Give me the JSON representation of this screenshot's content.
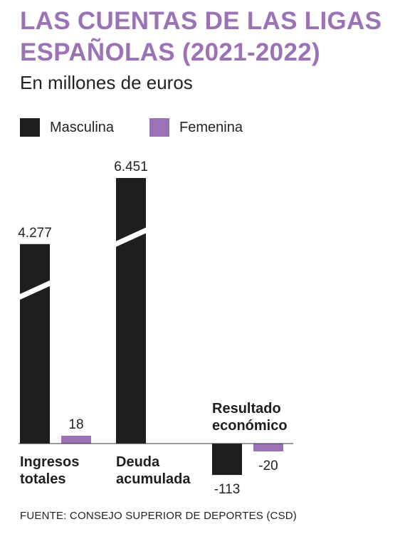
{
  "header": {
    "title": "LAS CUENTAS DE LAS LIGAS ESPAÑOLAS (2021-2022)",
    "subtitle": "En millones de euros"
  },
  "legend": {
    "items": [
      {
        "label": "Masculina",
        "color": "#1e1e1e"
      },
      {
        "label": "Femenina",
        "color": "#9b72b5"
      }
    ]
  },
  "chart_data": {
    "type": "bar",
    "title": "LAS CUENTAS DE LAS LIGAS ESPAÑOLAS (2021-2022)",
    "subtitle": "En millones de euros",
    "xlabel": "",
    "ylabel": "",
    "legend_position": "top-left",
    "axis_broken": true,
    "grid": false,
    "categories": [
      "Ingresos totales",
      "Deuda acumulada",
      "Resultado económico"
    ],
    "category_labels": [
      [
        "Ingresos",
        "totales"
      ],
      [
        "Deuda",
        "acumulada"
      ],
      [
        "Resultado",
        "económico"
      ]
    ],
    "series": [
      {
        "name": "Masculina",
        "color": "#1e1e1e",
        "values": [
          4277,
          6451,
          -113
        ],
        "labels": [
          "4.277",
          "6.451",
          "-113"
        ]
      },
      {
        "name": "Femenina",
        "color": "#9b72b5",
        "values": [
          18,
          null,
          -20
        ],
        "labels": [
          "18",
          "",
          "-20"
        ]
      }
    ]
  },
  "footer": {
    "source": "FUENTE: CONSEJO SUPERIOR DE DEPORTES (CSD)"
  }
}
